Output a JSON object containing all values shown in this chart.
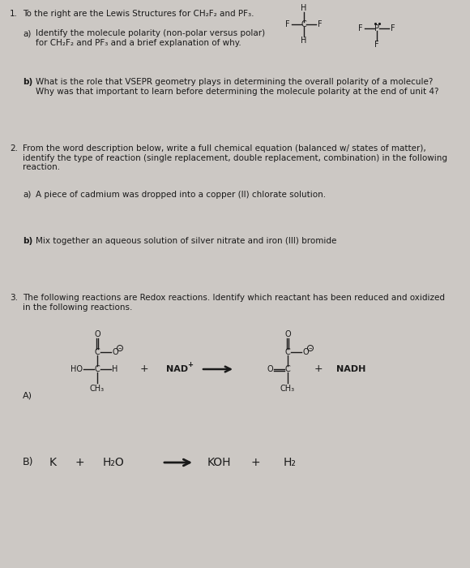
{
  "bg_color": "#ccc8c4",
  "text_color": "#1a1a1a",
  "title1_num": "1.",
  "title1_text": "To the right are the Lewis Structures for CH₂F₂ and PF₃.",
  "q1a_label": "a)",
  "q1a_text": "Identify the molecule polarity (non-polar versus polar)\nfor CH₂F₂ and PF₃ and a brief explanation of why.",
  "q1b_label": "b)",
  "q1b_text": "What is the role that VSEPR geometry plays in determining the overall polarity of a molecule?\nWhy was that important to learn before determining the molecule polarity at the end of unit 4?",
  "title2_num": "2.",
  "title2_text": "From the word description below, write a full chemical equation (balanced w/ states of matter),\nidentify the type of reaction (single replacement, double replacement, combination) in the following\nreaction.",
  "q2a_label": "a)",
  "q2a_text": "A piece of cadmium was dropped into a copper (II) chlorate solution.",
  "q2b_label": "b)",
  "q2b_text": "Mix together an aqueous solution of silver nitrate and iron (III) bromide",
  "title3_num": "3.",
  "title3_text": "The following reactions are Redox reactions. Identify which reactant has been reduced and oxidized\nin the following reactions.",
  "q3a_label": "A)",
  "q3b_label": "B)"
}
